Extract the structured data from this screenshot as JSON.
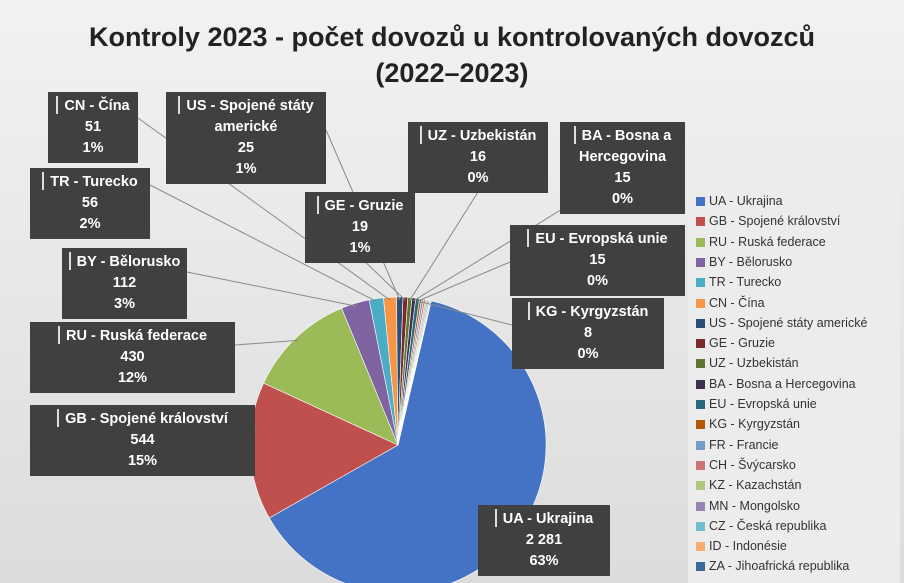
{
  "chart_data": {
    "type": "pie",
    "title": "Kontroly 2023 - počet dovozů u kontrolovaných dovozců",
    "subtitle": "(2022–2023)",
    "categories": [
      "UA - Ukrajina",
      "GB - Spojené království",
      "RU - Ruská federace",
      "BY - Bělorusko",
      "TR - Turecko",
      "CN - Čína",
      "US - Spojené státy americké",
      "GE - Gruzie",
      "UZ - Uzbekistán",
      "BA - Bosna a Hercegovina",
      "EU - Evropská unie",
      "KG - Kyrgyzstán",
      "FR - Francie",
      "CH - Švýcarsko",
      "KZ - Kazachstán",
      "MN - Mongolsko",
      "CZ - Česká republika",
      "ID - Indonésie",
      "ZA - Jihoafrická republika"
    ],
    "values": [
      2281,
      544,
      430,
      112,
      56,
      51,
      25,
      19,
      16,
      15,
      15,
      8,
      8,
      7,
      6,
      5,
      5,
      4,
      3
    ],
    "value_labels": [
      "2 281",
      "544",
      "430",
      "112",
      "56",
      "51",
      "25",
      "19",
      "16",
      "15",
      "15",
      "8",
      null,
      null,
      null,
      null,
      null,
      null,
      null
    ],
    "percent_labels": [
      "63%",
      "15%",
      "12%",
      "3%",
      "2%",
      "1%",
      "1%",
      "1%",
      "0%",
      "0%",
      "0%",
      "0%",
      null,
      null,
      null,
      null,
      null,
      null,
      null
    ],
    "colors": [
      "#4472c4",
      "#c0504d",
      "#9bbb59",
      "#8064a2",
      "#4bacc6",
      "#f79646",
      "#2c4d75",
      "#772c2a",
      "#5f7530",
      "#3f3151",
      "#276a7c",
      "#b65708",
      "#729aca",
      "#cd7371",
      "#afc97a",
      "#9983b5",
      "#6fbdd1",
      "#f9ab6b",
      "#3a679c"
    ],
    "legend": "right"
  }
}
